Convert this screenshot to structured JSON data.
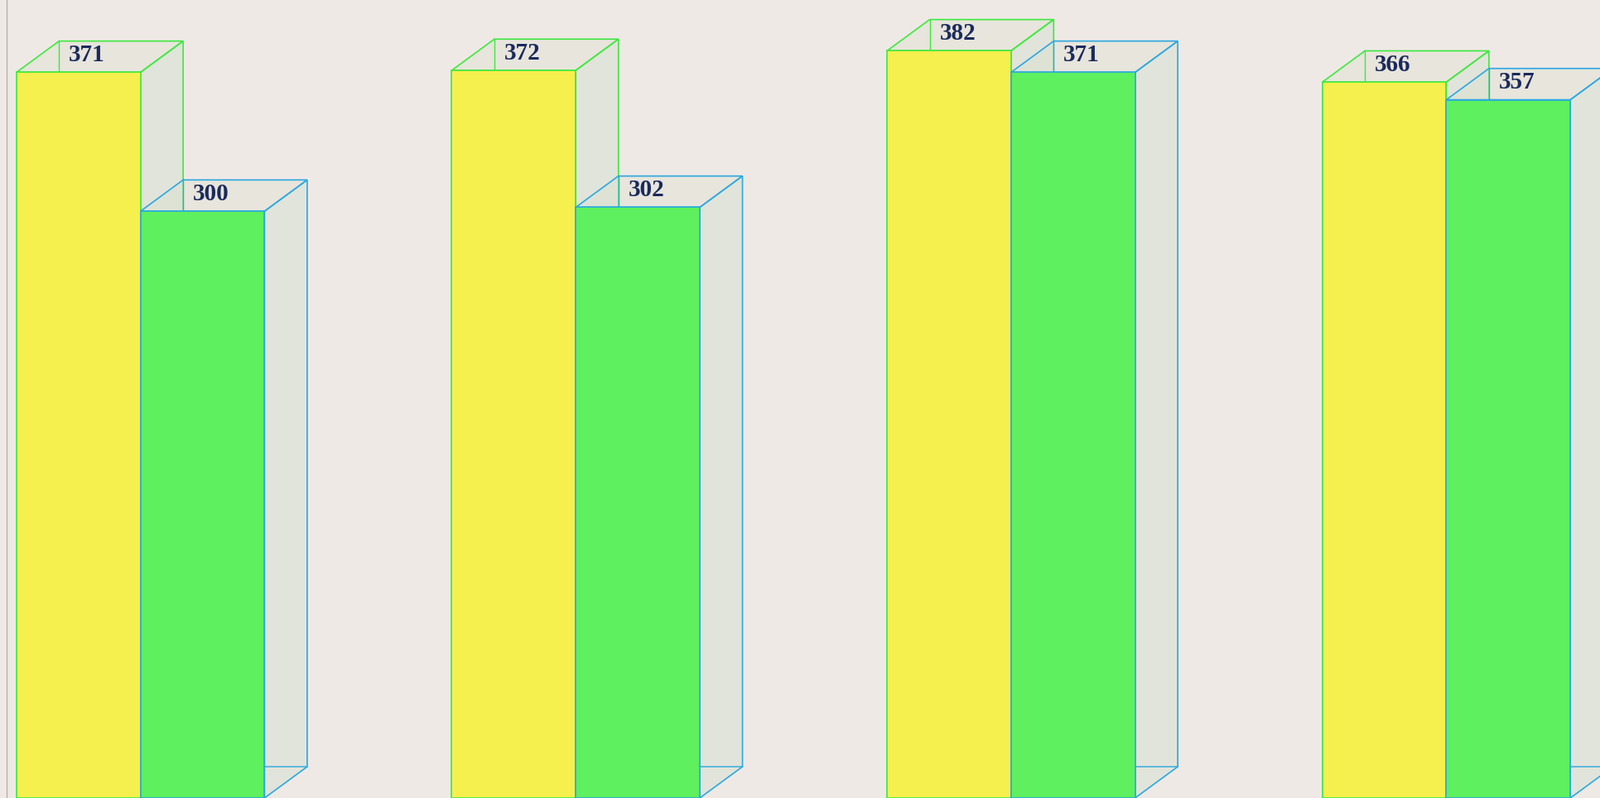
{
  "chart_data": {
    "type": "bar",
    "categories": [
      null,
      null,
      null,
      null
    ],
    "series": [
      {
        "color": "#f5f04e",
        "values": [
          371,
          372,
          382,
          366
        ]
      },
      {
        "color": "#5ef05e",
        "values": [
          300,
          302,
          371,
          357
        ]
      }
    ],
    "ylim": [
      0,
      408
    ],
    "yticks": [],
    "data_labels": true,
    "tick_labels": false,
    "grid": false
  }
}
